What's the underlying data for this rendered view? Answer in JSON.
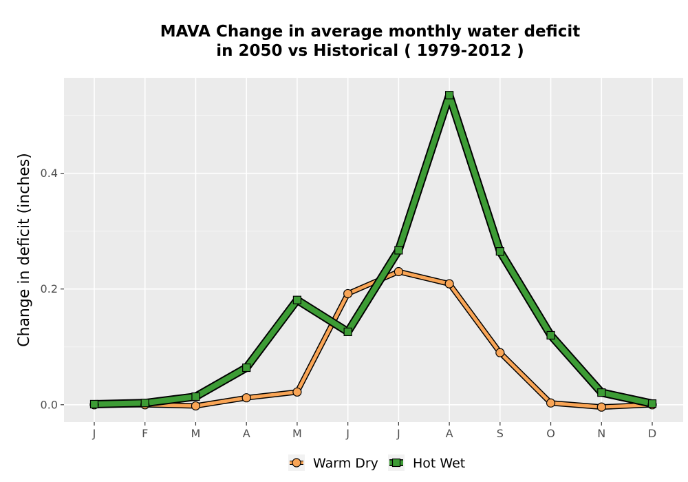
{
  "chart_data": {
    "type": "line",
    "title_line1": "MAVA  Change in average monthly water deficit",
    "title_line2": "in 2050 vs Historical ( 1979-2012 )",
    "xlabel": "",
    "ylabel": "Change in deficit (inches)",
    "categories": [
      "J",
      "F",
      "M",
      "A",
      "M",
      "J",
      "J",
      "A",
      "S",
      "O",
      "N",
      "D"
    ],
    "ylim": [
      -0.03,
      0.565
    ],
    "yticks": [
      0.0,
      0.2,
      0.4
    ],
    "ytick_labels": [
      "0.0",
      "0.2",
      "0.4"
    ],
    "grid": true,
    "legend_position": "bottom",
    "series": [
      {
        "name": "Warm Dry",
        "color": "#f9a556",
        "marker": "circle",
        "values": [
          0.0,
          0.0,
          -0.002,
          0.012,
          0.022,
          0.192,
          0.23,
          0.209,
          0.09,
          0.003,
          -0.004,
          0.0
        ]
      },
      {
        "name": "Hot Wet",
        "color": "#3d9c35",
        "marker": "square",
        "values": [
          0.001,
          0.003,
          0.014,
          0.064,
          0.181,
          0.126,
          0.267,
          0.535,
          0.265,
          0.12,
          0.021,
          0.002
        ]
      }
    ]
  }
}
